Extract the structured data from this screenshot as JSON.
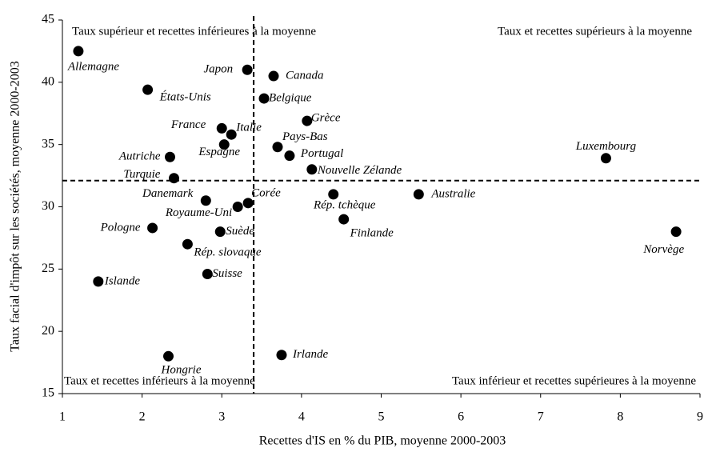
{
  "chart_data": {
    "type": "scatter",
    "xlabel": "Recettes d'IS en % du PIB, moyenne 2000-2003",
    "ylabel": "Taux facial d'impôt sur les sociétés, moyenne 2000-2003",
    "xlim": [
      1,
      9
    ],
    "ylim": [
      15,
      45
    ],
    "xticks": [
      1,
      2,
      3,
      4,
      5,
      6,
      7,
      8,
      9
    ],
    "yticks": [
      15,
      20,
      25,
      30,
      35,
      40,
      45
    ],
    "color": "#000000",
    "reference_lines": {
      "x": 3.4,
      "y": 32.1
    },
    "annotations": [
      "Taux supérieur et recettes inférieures à la moyenne",
      "Taux et recettes supérieurs à la moyenne",
      "Taux et recettes inférieurs à la moyenne",
      "Taux inférieur et recettes supérieures à la moyenne"
    ],
    "labels": [
      "Allemagne",
      "États-Unis",
      "Japon",
      "Canada",
      "Belgique",
      "France",
      "Italie",
      "Espagne",
      "Grèce",
      "Pays-Bas",
      "Portugal",
      "Nouvelle Zélande",
      "Autriche",
      "Turquie",
      "Luxembourg",
      "Danemark",
      "Corée",
      "Royaume-Uni",
      "Rép. tchèque",
      "Australie",
      "Finlande",
      "Pologne",
      "Suède",
      "Rép. slovaque",
      "Norvège",
      "Islande",
      "Suisse",
      "Hongrie",
      "Irlande"
    ],
    "x": [
      1.2,
      2.07,
      3.32,
      3.65,
      3.53,
      3.0,
      3.12,
      3.03,
      4.07,
      3.7,
      3.85,
      4.13,
      2.35,
      2.4,
      7.82,
      2.8,
      3.33,
      3.2,
      4.4,
      5.47,
      4.53,
      2.13,
      2.98,
      2.57,
      8.7,
      1.45,
      2.82,
      2.33,
      3.75
    ],
    "y": [
      42.5,
      39.4,
      41,
      40.5,
      38.7,
      36.3,
      35.8,
      35,
      36.9,
      34.8,
      34.1,
      33,
      34,
      32.3,
      33.9,
      30.5,
      30.3,
      30,
      31,
      31,
      29,
      28.3,
      28,
      27,
      28,
      24,
      24.6,
      18,
      18.1
    ]
  }
}
